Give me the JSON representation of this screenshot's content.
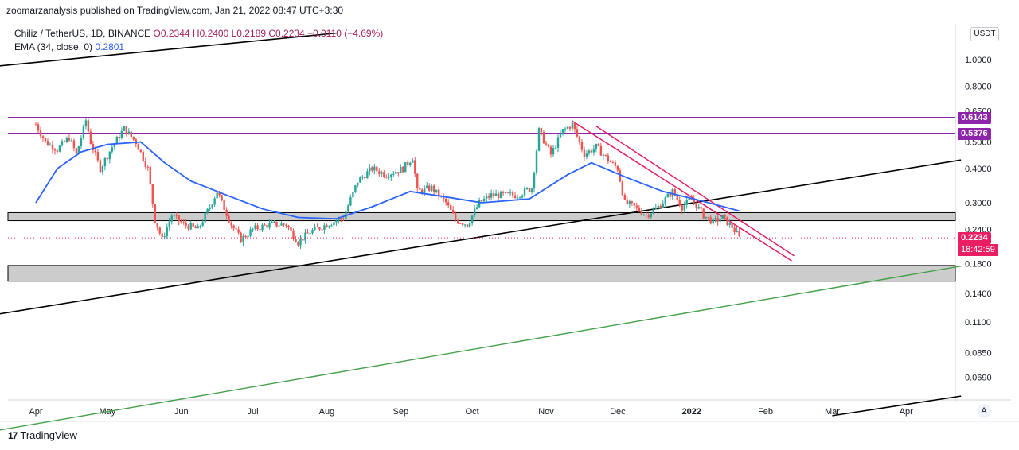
{
  "credit": "zoomarzanalysis published on TradingView.com, Jan 21, 2022 08:47 UTC+3:30",
  "legend": {
    "symbol": "Chiliz / TetherUS, 1D, BINANCE",
    "open": "O0.2344",
    "high": "H0.2400",
    "low": "L0.2189",
    "close": "C0.2234",
    "change": "−0.0110 (−4.69%)",
    "ema_label": "EMA (34, close, 0)",
    "ema_value": "0.2801"
  },
  "currency": "USDT",
  "auto_button": "A",
  "brand": {
    "logo": "17",
    "name": "TradingView"
  },
  "colors": {
    "candle_up": "#26a69a",
    "candle_down": "#ef5350",
    "ema": "#2962ff",
    "resistance": "#8e24aa",
    "trend_black": "#000000",
    "trend_green": "#43a047",
    "channel_pink": "#e91e63",
    "zone_fill": "#cccccc"
  },
  "chart_data": {
    "type": "candlestick",
    "symbol": "CHZUSDT",
    "interval": "1D",
    "y_scale": "log",
    "ylim": [
      0.055,
      1.2
    ],
    "y_ticks": [
      "1.0000",
      "0.8000",
      "0.6500",
      "0.5000",
      "0.4000",
      "0.3000",
      "0.2400",
      "0.1800",
      "0.1400",
      "0.1100",
      "0.0850",
      "0.0690"
    ],
    "x_ticks": [
      "Apr",
      "May",
      "Jun",
      "Jul",
      "Aug",
      "Sep",
      "Oct",
      "Nov",
      "Dec",
      "2022",
      "Feb",
      "Mar",
      "Apr"
    ],
    "price_labels": [
      {
        "value": "0.6143",
        "color": "#8e24aa"
      },
      {
        "value": "0.5376",
        "color": "#8e24aa"
      },
      {
        "value": "0.2234",
        "sub": "18:42:59",
        "color": "#e91e63"
      }
    ],
    "horizontal_levels": [
      0.6143,
      0.5376
    ],
    "zones": [
      [
        0.258,
        0.276
      ],
      [
        0.155,
        0.177
      ]
    ],
    "close_path": [
      [
        "2021-04-01",
        0.58
      ],
      [
        "2021-04-05",
        0.5
      ],
      [
        "2021-04-10",
        0.47
      ],
      [
        "2021-04-15",
        0.52
      ],
      [
        "2021-04-18",
        0.45
      ],
      [
        "2021-04-22",
        0.6
      ],
      [
        "2021-04-24",
        0.5
      ],
      [
        "2021-04-28",
        0.4
      ],
      [
        "2021-05-03",
        0.48
      ],
      [
        "2021-05-08",
        0.56
      ],
      [
        "2021-05-13",
        0.5
      ],
      [
        "2021-05-18",
        0.4
      ],
      [
        "2021-05-21",
        0.26
      ],
      [
        "2021-05-24",
        0.22
      ],
      [
        "2021-05-28",
        0.27
      ],
      [
        "2021-06-02",
        0.25
      ],
      [
        "2021-06-08",
        0.24
      ],
      [
        "2021-06-13",
        0.29
      ],
      [
        "2021-06-16",
        0.33
      ],
      [
        "2021-06-22",
        0.25
      ],
      [
        "2021-06-26",
        0.22
      ],
      [
        "2021-07-01",
        0.24
      ],
      [
        "2021-07-08",
        0.25
      ],
      [
        "2021-07-15",
        0.25
      ],
      [
        "2021-07-20",
        0.215
      ],
      [
        "2021-07-25",
        0.235
      ],
      [
        "2021-08-01",
        0.25
      ],
      [
        "2021-08-08",
        0.265
      ],
      [
        "2021-08-14",
        0.36
      ],
      [
        "2021-08-20",
        0.4
      ],
      [
        "2021-08-26",
        0.38
      ],
      [
        "2021-09-02",
        0.4
      ],
      [
        "2021-09-06",
        0.44
      ],
      [
        "2021-09-08",
        0.33
      ],
      [
        "2021-09-14",
        0.34
      ],
      [
        "2021-09-20",
        0.3
      ],
      [
        "2021-09-24",
        0.26
      ],
      [
        "2021-09-29",
        0.25
      ],
      [
        "2021-10-04",
        0.3
      ],
      [
        "2021-10-09",
        0.32
      ],
      [
        "2021-10-14",
        0.32
      ],
      [
        "2021-10-20",
        0.32
      ],
      [
        "2021-10-26",
        0.34
      ],
      [
        "2021-10-29",
        0.55
      ],
      [
        "2021-11-03",
        0.45
      ],
      [
        "2021-11-08",
        0.55
      ],
      [
        "2021-11-12",
        0.58
      ],
      [
        "2021-11-17",
        0.45
      ],
      [
        "2021-11-22",
        0.48
      ],
      [
        "2021-11-27",
        0.43
      ],
      [
        "2021-12-01",
        0.4
      ],
      [
        "2021-12-04",
        0.3
      ],
      [
        "2021-12-08",
        0.29
      ],
      [
        "2021-12-13",
        0.27
      ],
      [
        "2021-12-18",
        0.29
      ],
      [
        "2021-12-24",
        0.33
      ],
      [
        "2021-12-28",
        0.29
      ],
      [
        "2022-01-01",
        0.31
      ],
      [
        "2022-01-06",
        0.27
      ],
      [
        "2022-01-10",
        0.255
      ],
      [
        "2022-01-14",
        0.265
      ],
      [
        "2022-01-18",
        0.245
      ],
      [
        "2022-01-21",
        0.2234
      ]
    ],
    "ema_path": [
      [
        "2021-04-01",
        0.3
      ],
      [
        "2021-04-10",
        0.4
      ],
      [
        "2021-04-20",
        0.46
      ],
      [
        "2021-05-01",
        0.49
      ],
      [
        "2021-05-15",
        0.5
      ],
      [
        "2021-05-25",
        0.42
      ],
      [
        "2021-06-05",
        0.36
      ],
      [
        "2021-06-20",
        0.32
      ],
      [
        "2021-07-05",
        0.285
      ],
      [
        "2021-07-20",
        0.265
      ],
      [
        "2021-08-05",
        0.262
      ],
      [
        "2021-08-20",
        0.29
      ],
      [
        "2021-09-05",
        0.33
      ],
      [
        "2021-09-20",
        0.315
      ],
      [
        "2021-10-05",
        0.3
      ],
      [
        "2021-10-25",
        0.31
      ],
      [
        "2021-11-10",
        0.38
      ],
      [
        "2021-11-20",
        0.42
      ],
      [
        "2021-12-05",
        0.37
      ],
      [
        "2021-12-20",
        0.33
      ],
      [
        "2022-01-05",
        0.305
      ],
      [
        "2022-01-21",
        0.2801
      ]
    ]
  }
}
